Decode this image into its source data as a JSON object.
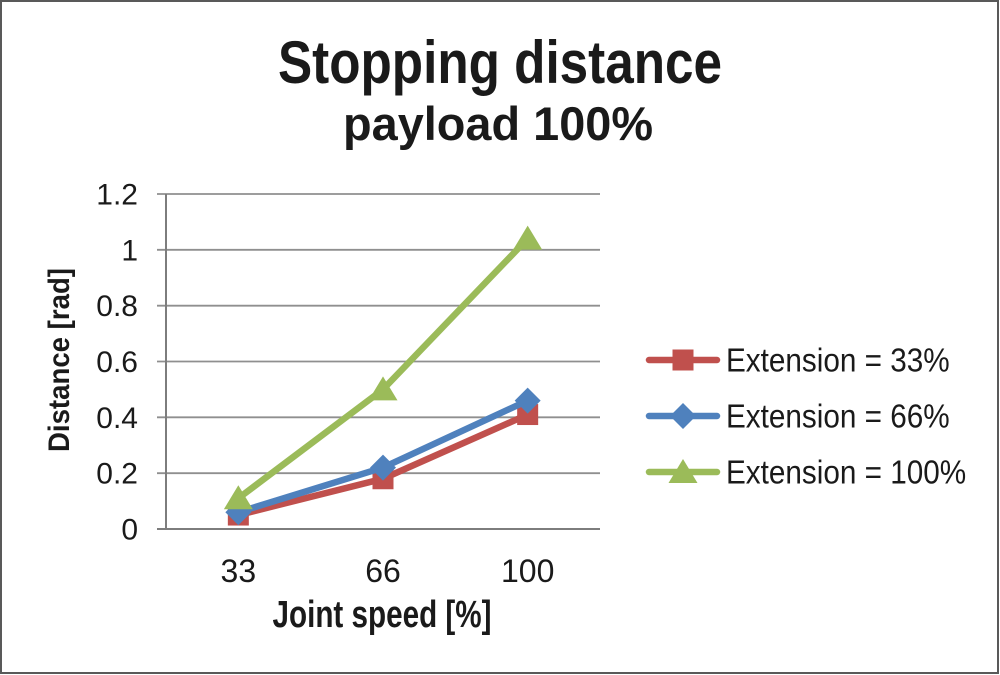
{
  "window": {
    "background": "#ffffff",
    "border_color": "#595959"
  },
  "chart_data": {
    "type": "line",
    "title": "Stopping distance",
    "subtitle": "payload 100%",
    "xlabel": "Joint speed [%]",
    "ylabel": "Distance [rad]",
    "categories": [
      "33",
      "66",
      "100"
    ],
    "series": [
      {
        "name": "Extension = 33%",
        "values": [
          0.05,
          0.18,
          0.41
        ],
        "color": "#c0504d",
        "marker": "square"
      },
      {
        "name": "Extension = 66%",
        "values": [
          0.06,
          0.22,
          0.46
        ],
        "color": "#4f81bd",
        "marker": "diamond"
      },
      {
        "name": "Extension = 100%",
        "values": [
          0.11,
          0.5,
          1.04
        ],
        "color": "#9bbb59",
        "marker": "triangle"
      }
    ],
    "ylim": [
      0,
      1.2
    ],
    "yticks": [
      0,
      0.2,
      0.4,
      0.6,
      0.8,
      1,
      1.2
    ],
    "ytick_labels": [
      "0",
      "0.2",
      "0.4",
      "0.6",
      "0.8",
      "1",
      "1.2"
    ],
    "grid": true,
    "legend_position": "right",
    "grid_color": "#8f8f8f",
    "axis_color": "#7d7d7d",
    "text_color": "#1a1a1a"
  }
}
